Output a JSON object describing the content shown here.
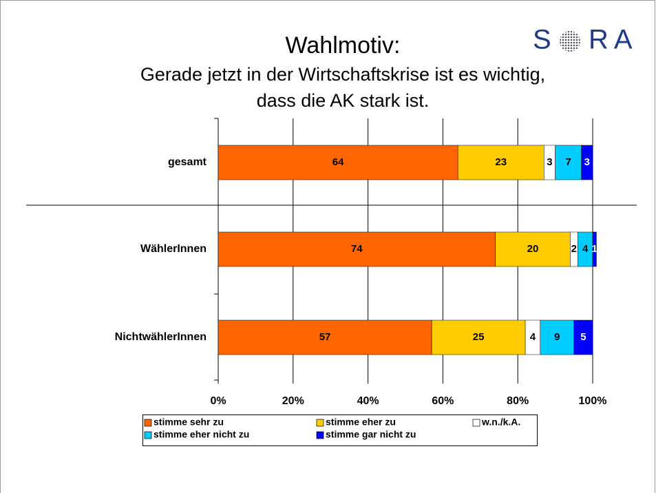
{
  "chart_data": {
    "type": "stacked_barh",
    "title": "Wahlmotiv:",
    "subtitle": [
      "Gerade jetzt in der Wirtschaftskrise ist es wichtig,",
      "dass die AK stark ist."
    ],
    "logo": [
      "S",
      "RA"
    ],
    "categories": [
      "gesamt",
      "WählerInnen",
      "NichtwählerInnen"
    ],
    "series": [
      {
        "name": "stimme sehr zu",
        "color": "#ff6600",
        "label_color": "#000000",
        "values": [
          64,
          74,
          57
        ]
      },
      {
        "name": "stimme eher zu",
        "color": "#ffcc00",
        "label_color": "#000000",
        "values": [
          23,
          20,
          25
        ]
      },
      {
        "name": "w.n./k.A.",
        "color": "#ffffff",
        "label_color": "#000000",
        "values": [
          3,
          2,
          4
        ]
      },
      {
        "name": "stimme eher nicht zu",
        "color": "#00ccff",
        "label_color": "#000000",
        "values": [
          7,
          4,
          9
        ]
      },
      {
        "name": "stimme gar nicht zu",
        "color": "#0000ff",
        "label_color": "#ffffff",
        "values": [
          3,
          1,
          5
        ]
      }
    ],
    "xlim": [
      0,
      100
    ],
    "xticks": [
      {
        "value": 0,
        "label": "0%"
      },
      {
        "value": 20,
        "label": "20%"
      },
      {
        "value": 40,
        "label": "40%"
      },
      {
        "value": 60,
        "label": "60%"
      },
      {
        "value": 80,
        "label": "80%"
      },
      {
        "value": 100,
        "label": "100%"
      }
    ],
    "grid": true
  }
}
